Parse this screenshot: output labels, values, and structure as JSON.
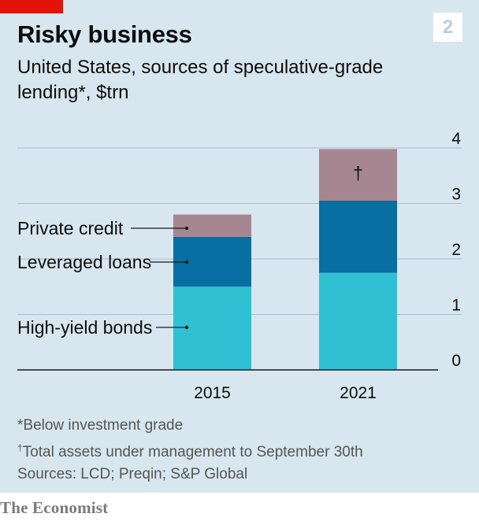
{
  "header": {
    "chart_number": "2",
    "title": "Risky business",
    "subtitle": "United States, sources of speculative-grade lending*, $trn"
  },
  "colors": {
    "accent_red": "#e3120b",
    "background": "#d7e6ef",
    "high_yield_bonds": "#2fc1d3",
    "leveraged_loans": "#076fa1",
    "private_credit": "#a68690"
  },
  "chart_data": {
    "type": "bar",
    "stacked": true,
    "title": "Risky business",
    "subtitle": "United States, sources of speculative-grade lending*, $trn",
    "categories": [
      "2015",
      "2021"
    ],
    "series": [
      {
        "name": "High-yield bonds",
        "values": [
          1.5,
          1.75
        ]
      },
      {
        "name": "Leveraged loans",
        "values": [
          0.9,
          1.3
        ]
      },
      {
        "name": "Private credit",
        "values": [
          0.4,
          0.93
        ]
      }
    ],
    "bar_markers": [
      "",
      "†"
    ],
    "ylim": [
      0,
      4
    ],
    "yticks": [
      "0",
      "1",
      "2",
      "3",
      "4"
    ],
    "y_axis_side": "right",
    "grid": true,
    "legend": "labels beside 2015 bar"
  },
  "footnotes": [
    {
      "mark": "",
      "text": "*Below investment grade"
    },
    {
      "mark": "†",
      "text": "Total assets under management to September 30th"
    },
    {
      "mark": "",
      "text": "Sources: LCD; Preqin; S&P Global"
    }
  ],
  "source": "The Economist"
}
